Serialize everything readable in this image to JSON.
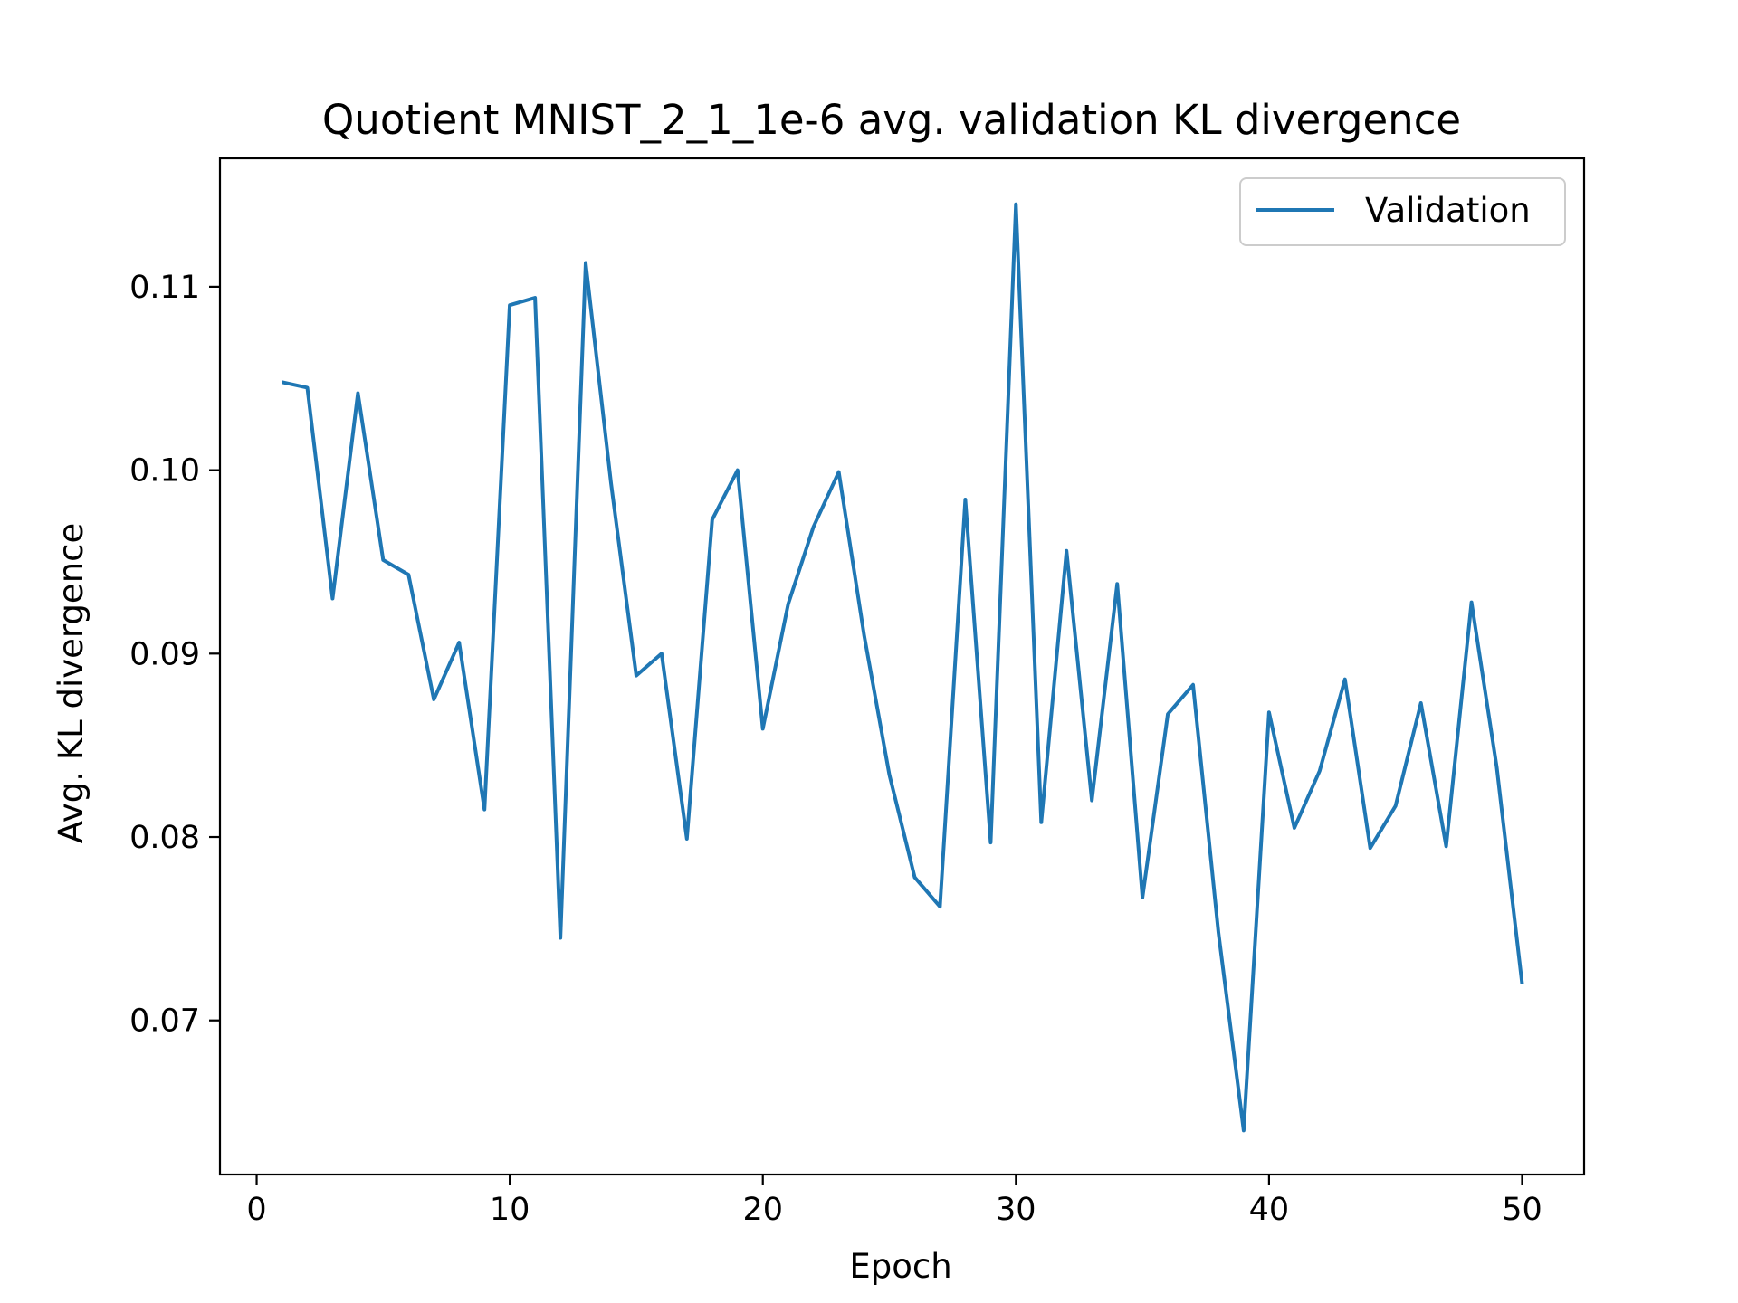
{
  "chart_data": {
    "type": "line",
    "title": "Quotient MNIST_2_1_1e-6 avg. validation KL divergence",
    "xlabel": "Epoch",
    "ylabel": "Avg. KL divergence",
    "xlim": [
      -1.45,
      52.45
    ],
    "ylim": [
      0.0616,
      0.117
    ],
    "xticks": [
      0,
      10,
      20,
      30,
      40,
      50
    ],
    "xtick_labels": [
      "0",
      "10",
      "20",
      "30",
      "40",
      "50"
    ],
    "yticks": [
      0.07,
      0.08,
      0.09,
      0.1,
      0.11
    ],
    "ytick_labels": [
      "0.07",
      "0.08",
      "0.09",
      "0.10",
      "0.11"
    ],
    "grid": false,
    "legend_position": "top-right",
    "series": [
      {
        "name": "Validation",
        "color": "#1f77b4",
        "x": [
          1,
          2,
          3,
          4,
          5,
          6,
          7,
          8,
          9,
          10,
          11,
          12,
          13,
          14,
          15,
          16,
          17,
          18,
          19,
          20,
          21,
          22,
          23,
          24,
          25,
          26,
          27,
          28,
          29,
          30,
          31,
          32,
          33,
          34,
          35,
          36,
          37,
          38,
          39,
          40,
          41,
          42,
          43,
          44,
          45,
          46,
          47,
          48,
          49,
          50
        ],
        "y": [
          0.1048,
          0.1045,
          0.093,
          0.1042,
          0.0951,
          0.0943,
          0.0875,
          0.0906,
          0.0815,
          0.109,
          0.1094,
          0.0745,
          0.1113,
          0.0993,
          0.0888,
          0.09,
          0.0799,
          0.0973,
          0.1,
          0.0859,
          0.0927,
          0.0969,
          0.0999,
          0.091,
          0.0834,
          0.0778,
          0.0762,
          0.0984,
          0.0797,
          0.1145,
          0.0808,
          0.0956,
          0.082,
          0.0938,
          0.0767,
          0.0867,
          0.0883,
          0.0748,
          0.064,
          0.0868,
          0.0805,
          0.0836,
          0.0886,
          0.0794,
          0.0817,
          0.0873,
          0.0795,
          0.0928,
          0.0838,
          0.072
        ]
      }
    ]
  }
}
